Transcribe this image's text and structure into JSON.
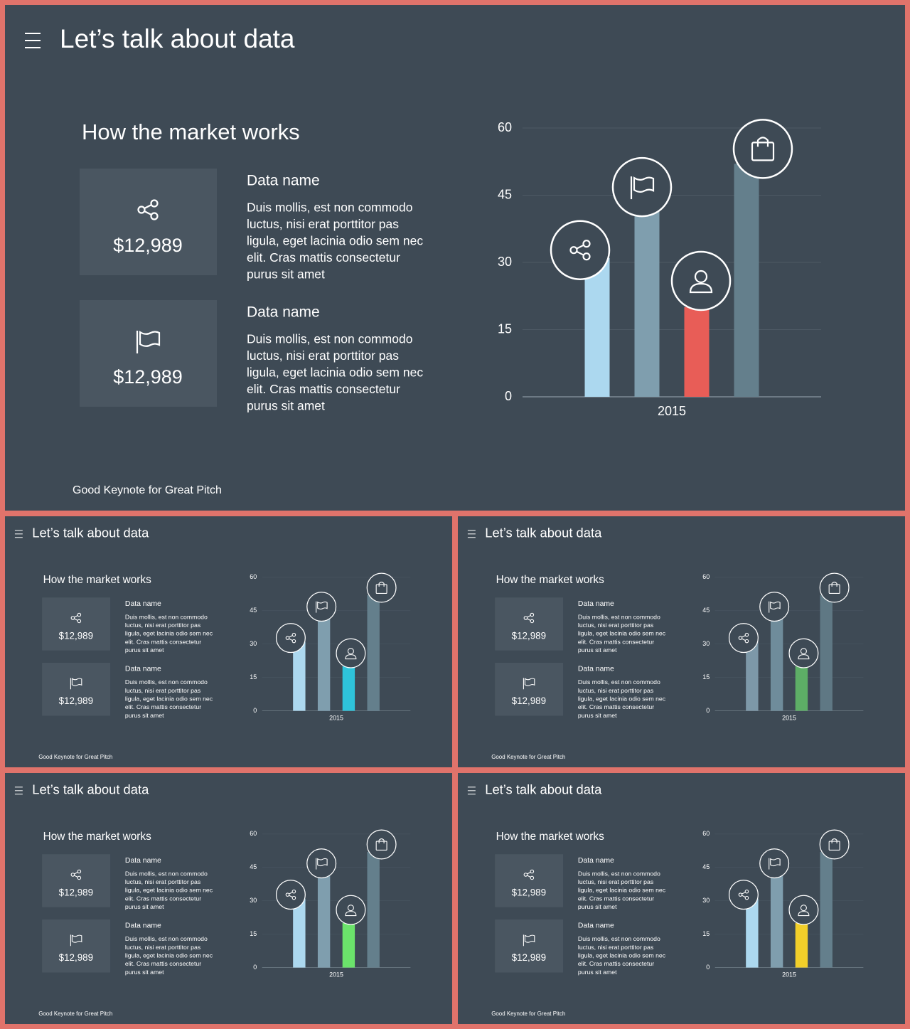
{
  "slides": [
    {
      "title": "Let’s talk about data",
      "heading": "How the market works",
      "footer": "Good Keynote for Great Pitch",
      "cards": [
        {
          "value": "$12,989",
          "name": "Data name",
          "lines": [
            "Duis mollis, est non commodo",
            "luctus, nisi erat porttitor pas",
            "ligula, eget lacinia odio sem nec",
            "elit. Cras mattis consectetur",
            "purus sit amet"
          ]
        },
        {
          "value": "$12,989",
          "name": "Data name",
          "lines": [
            "Duis mollis, est non commodo",
            "luctus, nisi erat porttitor pas",
            "ligula, eget lacinia odio sem nec",
            "elit. Cras mattis consectetur",
            "purus sit amet"
          ]
        }
      ]
    },
    {
      "title": "Let’s talk about data",
      "heading": "How the market works",
      "footer": "Good Keynote for Great Pitch",
      "cards": [
        {
          "value": "$12,989",
          "name": "Data name",
          "lines": [
            "Duis mollis, est non commodo",
            "luctus, nisi erat porttitor pas",
            "ligula, eget lacinia odio sem nec",
            "elit. Cras mattis consectetur",
            "purus sit amet"
          ]
        },
        {
          "value": "$12,989",
          "name": "Data name",
          "lines": [
            "Duis mollis, est non commodo",
            "luctus, nisi erat porttitor pas",
            "ligula, eget lacinia odio sem nec",
            "elit. Cras mattis consectetur",
            "purus sit amet"
          ]
        }
      ]
    },
    {
      "title": "Let’s talk about data",
      "heading": "How the market works",
      "footer": "Good Keynote for Great Pitch",
      "cards": [
        {
          "value": "$12,989",
          "name": "Data name",
          "lines": [
            "Duis mollis, est non commodo",
            "luctus, nisi erat porttitor pas",
            "ligula, eget lacinia odio sem nec",
            "elit. Cras mattis consectetur",
            "purus sit amet"
          ]
        },
        {
          "value": "$12,989",
          "name": "Data name",
          "lines": [
            "Duis mollis, est non commodo",
            "luctus, nisi erat porttitor pas",
            "ligula, eget lacinia odio sem nec",
            "elit. Cras mattis consectetur",
            "purus sit amet"
          ]
        }
      ]
    },
    {
      "title": "Let’s talk about data",
      "heading": "How the market works",
      "footer": "Good Keynote for Great Pitch",
      "cards": [
        {
          "value": "$12,989",
          "name": "Data name",
          "lines": [
            "Duis mollis, est non commodo",
            "luctus, nisi erat porttitor pas",
            "ligula, eget lacinia odio sem nec",
            "elit. Cras mattis consectetur",
            "purus sit amet"
          ]
        },
        {
          "value": "$12,989",
          "name": "Data name",
          "lines": [
            "Duis mollis, est non commodo",
            "luctus, nisi erat porttitor pas",
            "ligula, eget lacinia odio sem nec",
            "elit. Cras mattis consectetur",
            "purus sit amet"
          ]
        }
      ]
    },
    {
      "title": "Let’s talk about data",
      "heading": "How the market works",
      "footer": "Good Keynote for Great Pitch",
      "cards": [
        {
          "value": "$12,989",
          "name": "Data name",
          "lines": [
            "Duis mollis, est non commodo",
            "luctus, nisi erat porttitor pas",
            "ligula, eget lacinia odio sem nec",
            "elit. Cras mattis consectetur",
            "purus sit amet"
          ]
        },
        {
          "value": "$12,989",
          "name": "Data name",
          "lines": [
            "Duis mollis, est non commodo",
            "luctus, nisi erat porttitor pas",
            "ligula, eget lacinia odio sem nec",
            "elit. Cras mattis consectetur",
            "purus sit amet"
          ]
        }
      ]
    }
  ],
  "chart_data": [
    {
      "type": "bar",
      "categories": [
        "2015"
      ],
      "ylim": [
        0,
        60
      ],
      "yticks": [
        0,
        15,
        30,
        45,
        60
      ],
      "grid": true,
      "series": [
        {
          "color": "#acd8ef",
          "values": [
            31
          ]
        },
        {
          "color": "#7f9eae",
          "values": [
            43
          ]
        },
        {
          "color": "#e85d57",
          "values": [
            20
          ]
        },
        {
          "color": "#647f8c",
          "values": [
            52
          ]
        }
      ]
    },
    {
      "type": "bar",
      "categories": [
        "2015"
      ],
      "ylim": [
        0,
        60
      ],
      "yticks": [
        0,
        15,
        30,
        45,
        60
      ],
      "grid": true,
      "series": [
        {
          "color": "#acd8ef",
          "values": [
            31
          ]
        },
        {
          "color": "#7f9eae",
          "values": [
            43
          ]
        },
        {
          "color": "#2ec3da",
          "values": [
            20
          ]
        },
        {
          "color": "#647f8c",
          "values": [
            52
          ]
        }
      ]
    },
    {
      "type": "bar",
      "categories": [
        "2015"
      ],
      "ylim": [
        0,
        60
      ],
      "yticks": [
        0,
        15,
        30,
        45,
        60
      ],
      "grid": true,
      "series": [
        {
          "color": "#7d98a8",
          "values": [
            31
          ]
        },
        {
          "color": "#6f8c9b",
          "values": [
            43
          ]
        },
        {
          "color": "#5dae66",
          "values": [
            20
          ]
        },
        {
          "color": "#5f7884",
          "values": [
            52
          ]
        }
      ]
    },
    {
      "type": "bar",
      "categories": [
        "2015"
      ],
      "ylim": [
        0,
        60
      ],
      "yticks": [
        0,
        15,
        30,
        45,
        60
      ],
      "grid": true,
      "series": [
        {
          "color": "#acd8ef",
          "values": [
            31
          ]
        },
        {
          "color": "#7f9eae",
          "values": [
            43
          ]
        },
        {
          "color": "#6be36b",
          "values": [
            20
          ]
        },
        {
          "color": "#647f8c",
          "values": [
            52
          ]
        }
      ]
    },
    {
      "type": "bar",
      "categories": [
        "2015"
      ],
      "ylim": [
        0,
        60
      ],
      "yticks": [
        0,
        15,
        30,
        45,
        60
      ],
      "grid": true,
      "series": [
        {
          "color": "#acd8ef",
          "values": [
            31
          ]
        },
        {
          "color": "#7f9eae",
          "values": [
            43
          ]
        },
        {
          "color": "#f2cf2a",
          "values": [
            20
          ]
        },
        {
          "color": "#647f8c",
          "values": [
            52
          ]
        }
      ]
    }
  ]
}
